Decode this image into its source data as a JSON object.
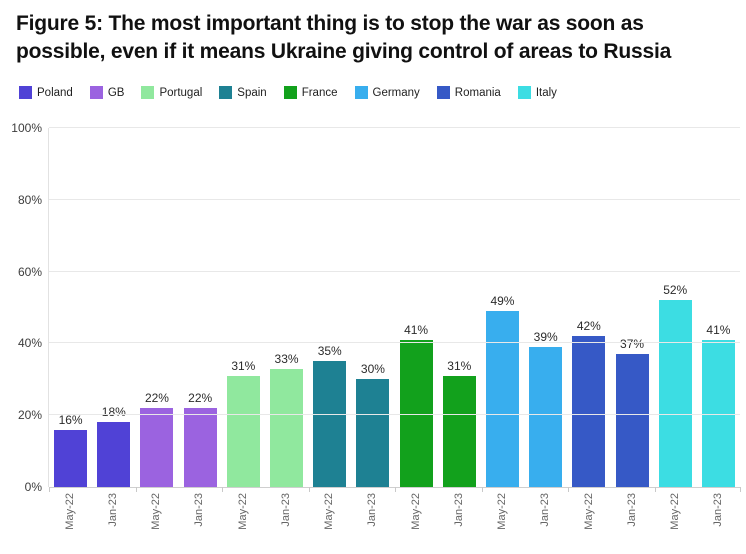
{
  "chart_data": {
    "type": "bar",
    "title": "Figure 5: The most important thing is to stop the war as soon as possible, even if it means Ukraine giving control of areas to Russia",
    "categories": [
      "Poland",
      "GB",
      "Portugal",
      "Spain",
      "France",
      "Germany",
      "Romania",
      "Italy"
    ],
    "series": [
      {
        "name": "May-22",
        "values": [
          16,
          22,
          31,
          35,
          41,
          49,
          42,
          52
        ],
        "labels": [
          "16%",
          "22%",
          "31%",
          "35%",
          "41%",
          "49%",
          "42%",
          "52%"
        ]
      },
      {
        "name": "Jan-23",
        "values": [
          18,
          22,
          33,
          30,
          31,
          39,
          37,
          41
        ],
        "labels": [
          "18%",
          "22%",
          "33%",
          "30%",
          "31%",
          "39%",
          "37%",
          "41%"
        ]
      }
    ],
    "bar_colors_by_category": {
      "Poland": "#5042d6",
      "GB": "#9b63e0",
      "Portugal": "#90e89e",
      "Spain": "#1e8193",
      "France": "#12a11c",
      "Germany": "#38aeee",
      "Romania": "#3659c6",
      "Italy": "#3cdde3"
    },
    "xlabel": "",
    "ylabel": "",
    "ylim": [
      0,
      100
    ],
    "yticks": [
      0,
      20,
      40,
      60,
      80,
      100
    ],
    "ytick_labels": [
      "0%",
      "20%",
      "40%",
      "60%",
      "80%",
      "100%"
    ],
    "x_tick_label_rotation": -90,
    "grid": true,
    "legend_position": "top-left",
    "value_label_unit": "%"
  }
}
